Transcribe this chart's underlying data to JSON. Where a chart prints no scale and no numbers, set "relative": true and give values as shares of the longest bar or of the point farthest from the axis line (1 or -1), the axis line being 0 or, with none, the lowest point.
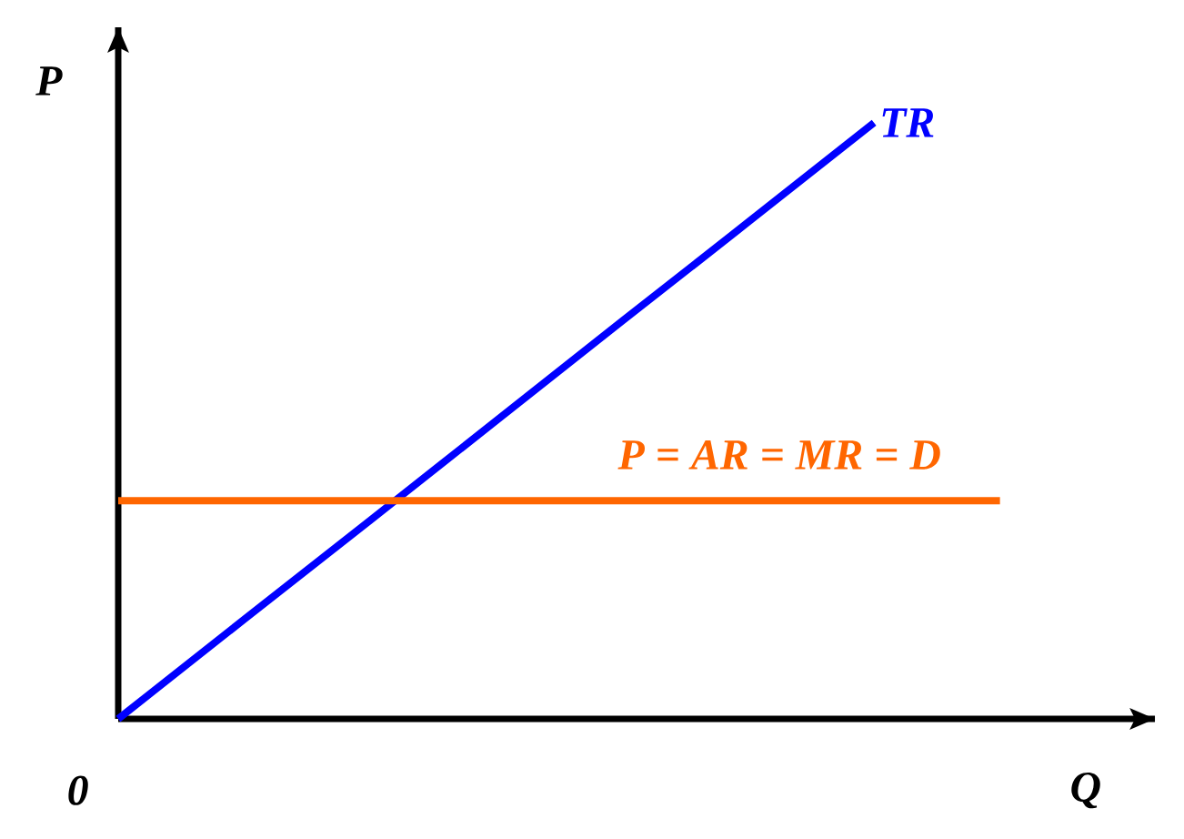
{
  "chart_data": {
    "type": "line",
    "relative": true,
    "xlabel": "Q",
    "ylabel": "P",
    "annotations": [
      "0"
    ],
    "categories": [
      null,
      null,
      null,
      null,
      null,
      null,
      null,
      null
    ],
    "series": [
      {
        "name": "TR",
        "color": "#0000ff",
        "values": [
          0,
          0.167,
          0.333,
          0.5,
          0.667,
          0.833,
          1,
          null
        ]
      },
      {
        "name": "P = AR = MR = D",
        "color": "#ff6600",
        "values": [
          0.366,
          0.366,
          0.366,
          0.366,
          0.366,
          0.366,
          0.366,
          0.366
        ]
      }
    ]
  }
}
